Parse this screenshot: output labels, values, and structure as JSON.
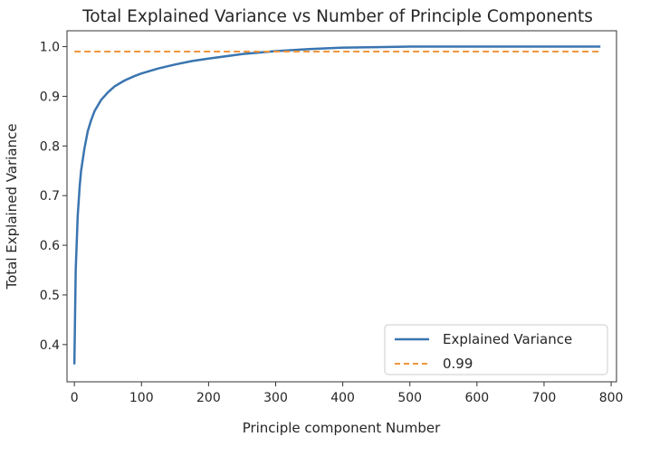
{
  "chart_data": {
    "type": "line",
    "title": "Total Explained Variance vs Number of Principle Components",
    "xlabel": "Principle component Number",
    "ylabel": "Total Explained Variance",
    "xlim": [
      -11,
      808
    ],
    "ylim": [
      0.325,
      1.032
    ],
    "xticks": [
      0,
      100,
      200,
      300,
      400,
      500,
      600,
      700,
      800
    ],
    "yticks": [
      0.4,
      0.5,
      0.6,
      0.7,
      0.8,
      0.9,
      1.0
    ],
    "xtick_labels": [
      "0",
      "100",
      "200",
      "300",
      "400",
      "500",
      "600",
      "700",
      "800"
    ],
    "ytick_labels": [
      "0.4",
      "0.5",
      "0.6",
      "0.7",
      "0.8",
      "0.9",
      "1.0"
    ],
    "grid": false,
    "legend_position": "bottom-right",
    "series": [
      {
        "name": "Explained Variance",
        "style": "solid",
        "color": "#3a75b0",
        "x": [
          0,
          2,
          5,
          8,
          10,
          15,
          20,
          25,
          30,
          40,
          50,
          60,
          75,
          90,
          100,
          125,
          150,
          175,
          200,
          250,
          300,
          350,
          400,
          450,
          500,
          600,
          700,
          784
        ],
        "y": [
          0.36,
          0.55,
          0.66,
          0.72,
          0.75,
          0.795,
          0.83,
          0.852,
          0.87,
          0.893,
          0.908,
          0.92,
          0.932,
          0.941,
          0.946,
          0.956,
          0.964,
          0.971,
          0.976,
          0.985,
          0.991,
          0.995,
          0.998,
          0.999,
          1.0,
          1.0,
          1.0,
          1.0
        ]
      },
      {
        "name": "0.99",
        "style": "dashed",
        "color": "#f0963e",
        "x": [
          0,
          784
        ],
        "y": [
          0.99,
          0.99
        ]
      }
    ]
  }
}
